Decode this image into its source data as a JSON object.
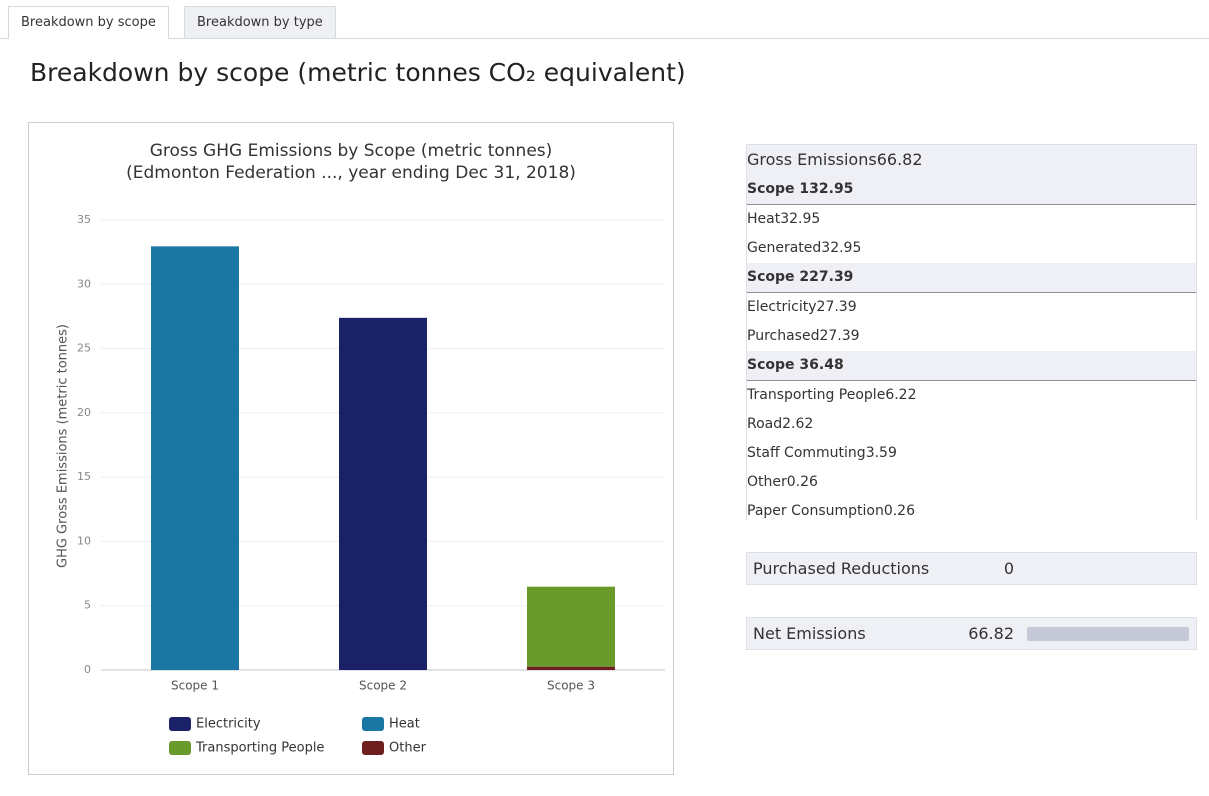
{
  "tabs": [
    "Breakdown by scope",
    "Breakdown by type"
  ],
  "heading": "Breakdown by scope (metric tonnes CO₂ equivalent)",
  "chart_data": {
    "type": "bar",
    "stacked": true,
    "title": "Gross GHG Emissions by Scope (metric tonnes)",
    "subtitle": "(Edmonton Federation ..., year ending Dec 31, 2018)",
    "y_label": "GHG Gross Emissions (metric tonnes)",
    "categories": [
      "Scope 1",
      "Scope 2",
      "Scope 3"
    ],
    "series": [
      {
        "name": "Electricity",
        "color": "#1b2166",
        "values": [
          null,
          27.39,
          null
        ]
      },
      {
        "name": "Heat",
        "color": "#1a76a3",
        "values": [
          32.95,
          null,
          null
        ]
      },
      {
        "name": "Transporting People",
        "color": "#6b9a2c",
        "values": [
          null,
          null,
          6.22
        ]
      },
      {
        "name": "Other",
        "color": "#6e2020",
        "values": [
          null,
          null,
          0.26
        ]
      }
    ],
    "ylim": [
      0,
      35
    ],
    "yticks": [
      0,
      5,
      10,
      15,
      20,
      25,
      30,
      35
    ],
    "grid": true
  },
  "table": {
    "gross": {
      "label": "Gross Emissions",
      "value": 66.82
    },
    "scopes": [
      {
        "name": "Scope 1",
        "value": 32.95,
        "categories": [
          {
            "name": "Heat",
            "value": 32.95,
            "color": "#1a76a3",
            "items": [
              {
                "name": "Generated",
                "value": 32.95
              }
            ]
          }
        ]
      },
      {
        "name": "Scope 2",
        "value": 27.39,
        "categories": [
          {
            "name": "Electricity",
            "value": 27.39,
            "color": "#1b2166",
            "items": [
              {
                "name": "Purchased",
                "value": 27.39
              }
            ]
          }
        ]
      },
      {
        "name": "Scope 3",
        "value": 6.48,
        "categories": [
          {
            "name": "Transporting People",
            "value": 6.22,
            "color": "#6b9a2c",
            "items": [
              {
                "name": "Road",
                "value": 2.62
              },
              {
                "name": "Staff Commuting",
                "value": 3.59
              }
            ]
          },
          {
            "name": "Other",
            "value": 0.26,
            "color": "#6e2020",
            "items": [
              {
                "name": "Paper Consumption",
                "value": 0.26
              }
            ]
          }
        ]
      }
    ],
    "reductions": {
      "label": "Purchased Reductions",
      "value": 0
    },
    "net": {
      "label": "Net Emissions",
      "value": 66.82
    }
  }
}
